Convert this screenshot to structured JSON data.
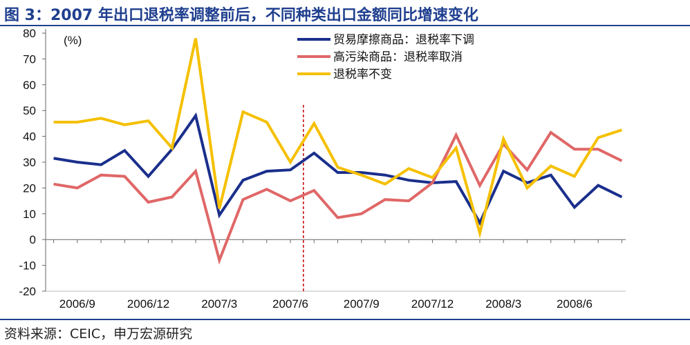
{
  "header": {
    "title": "图 3：2007 年出口退税率调整前后，不同种类出口金额同比增速变化"
  },
  "footer": {
    "source": "资料来源：CEIC，申万宏源研究"
  },
  "chart_data": {
    "type": "line",
    "title": "图 3：2007 年出口退税率调整前后，不同种类出口金额同比增速变化",
    "unit_label": "(%)",
    "xlabel": "",
    "ylabel": "",
    "ylim": [
      -20,
      80
    ],
    "yticks": [
      -20,
      -10,
      0,
      10,
      20,
      30,
      40,
      50,
      60,
      70,
      80
    ],
    "x_tick_labels": [
      "2006/9",
      "2006/12",
      "2007/3",
      "2007/6",
      "2007/9",
      "2007/12",
      "2008/3",
      "2008/6"
    ],
    "x": [
      "2006/8",
      "2006/9",
      "2006/10",
      "2006/11",
      "2006/12",
      "2007/1",
      "2007/2",
      "2007/3",
      "2007/4",
      "2007/5",
      "2007/6",
      "2007/7",
      "2007/8",
      "2007/9",
      "2007/10",
      "2007/11",
      "2007/12",
      "2008/1",
      "2008/2",
      "2008/3",
      "2008/4",
      "2008/5",
      "2008/6",
      "2008/7",
      "2008/8"
    ],
    "annotation_vline_x": "2007/7",
    "grid": false,
    "legend_position": "top-center",
    "series": [
      {
        "name": "贸易摩擦商品：退税率下调",
        "color": "#1a2f8c",
        "values": [
          31.5,
          30,
          29,
          34.5,
          24.5,
          35,
          48,
          9.5,
          23,
          26.5,
          27,
          33.5,
          26,
          26,
          25,
          23,
          22,
          22.5,
          6.5,
          26.5,
          22,
          25,
          12.5,
          21,
          16.5
        ]
      },
      {
        "name": "高污染商品：退税率取消",
        "color": "#e06767",
        "values": [
          21.5,
          20,
          25,
          24.5,
          14.5,
          16.5,
          26.5,
          -8,
          15.5,
          19.5,
          15,
          19,
          8.5,
          10,
          15.5,
          15,
          22,
          40.5,
          21,
          37,
          27,
          41.5,
          35,
          35,
          30.5
        ]
      },
      {
        "name": "退税率不变",
        "color": "#f5c000",
        "values": [
          45.5,
          45.5,
          47,
          44.5,
          46,
          35.5,
          78,
          12,
          49.5,
          45.5,
          30,
          45,
          28,
          25,
          21.5,
          27.5,
          24,
          35.5,
          2.5,
          39,
          20,
          28.5,
          24.5,
          39.5,
          42.5
        ]
      }
    ]
  }
}
